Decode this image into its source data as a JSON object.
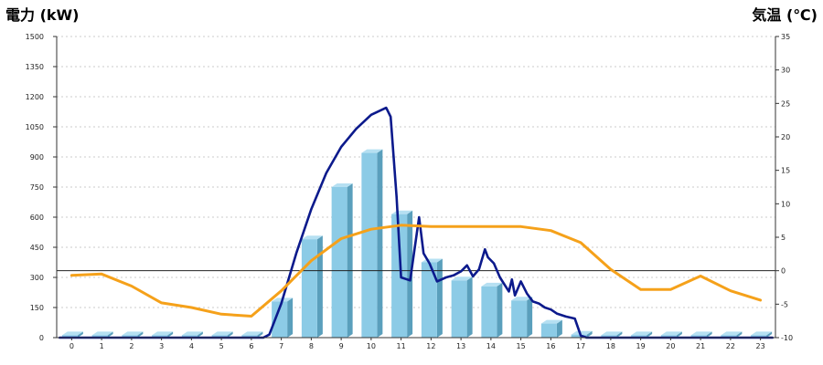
{
  "chart_data": {
    "type": "bar",
    "left_title": "電力 (kW)",
    "right_title": "気温 (℃)",
    "categories": [
      "0",
      "1",
      "2",
      "3",
      "4",
      "5",
      "6",
      "7",
      "8",
      "9",
      "10",
      "11",
      "12",
      "13",
      "14",
      "15",
      "16",
      "17",
      "18",
      "19",
      "20",
      "21",
      "22",
      "23"
    ],
    "y_left": {
      "min": 0,
      "max": 1500,
      "ticks": [
        "0",
        "150",
        "300",
        "450",
        "600",
        "750",
        "900",
        "1050",
        "1200",
        "1350",
        "1500"
      ]
    },
    "y_right": {
      "min": -10,
      "max": 35,
      "ticks": [
        "-10",
        "-5",
        "0",
        "5",
        "10",
        "15",
        "20",
        "25",
        "30",
        "35"
      ]
    },
    "grid": true,
    "reference_line": {
      "axis": "right",
      "value": 0
    },
    "series": [
      {
        "kind": "bar",
        "axis": "left",
        "values": [
          12,
          12,
          12,
          12,
          12,
          12,
          12,
          180,
          490,
          750,
          920,
          615,
          375,
          285,
          255,
          185,
          70,
          15,
          12,
          12,
          12,
          12,
          12,
          12
        ]
      },
      {
        "kind": "line",
        "axis": "left",
        "points": [
          [
            -0.4,
            0
          ],
          [
            6.4,
            0
          ],
          [
            6.6,
            15
          ],
          [
            7,
            170
          ],
          [
            7.5,
            420
          ],
          [
            8,
            640
          ],
          [
            8.5,
            820
          ],
          [
            9,
            950
          ],
          [
            9.5,
            1040
          ],
          [
            10,
            1110
          ],
          [
            10.5,
            1145
          ],
          [
            10.65,
            1100
          ],
          [
            10.85,
            700
          ],
          [
            11,
            300
          ],
          [
            11.3,
            285
          ],
          [
            11.6,
            600
          ],
          [
            11.75,
            420
          ],
          [
            11.95,
            370
          ],
          [
            12.2,
            280
          ],
          [
            12.5,
            300
          ],
          [
            12.75,
            310
          ],
          [
            13,
            330
          ],
          [
            13.2,
            360
          ],
          [
            13.4,
            305
          ],
          [
            13.6,
            340
          ],
          [
            13.8,
            440
          ],
          [
            13.9,
            400
          ],
          [
            14.1,
            370
          ],
          [
            14.3,
            300
          ],
          [
            14.6,
            230
          ],
          [
            14.7,
            290
          ],
          [
            14.8,
            210
          ],
          [
            15,
            280
          ],
          [
            15.2,
            220
          ],
          [
            15.4,
            180
          ],
          [
            15.6,
            170
          ],
          [
            15.8,
            150
          ],
          [
            16,
            140
          ],
          [
            16.2,
            120
          ],
          [
            16.5,
            105
          ],
          [
            16.8,
            95
          ],
          [
            17,
            10
          ],
          [
            17.2,
            0
          ],
          [
            23.4,
            0
          ]
        ]
      },
      {
        "kind": "line",
        "axis": "right",
        "points": [
          [
            0,
            -0.7
          ],
          [
            1,
            -0.5
          ],
          [
            2,
            -2.3
          ],
          [
            3,
            -4.8
          ],
          [
            4,
            -5.5
          ],
          [
            5,
            -6.5
          ],
          [
            6,
            -6.8
          ],
          [
            7,
            -3.0
          ],
          [
            8,
            1.5
          ],
          [
            9,
            4.8
          ],
          [
            10,
            6.2
          ],
          [
            11,
            6.8
          ],
          [
            12,
            6.6
          ],
          [
            13,
            6.6
          ],
          [
            14,
            6.6
          ],
          [
            15,
            6.6
          ],
          [
            16,
            6.0
          ],
          [
            17,
            4.2
          ],
          [
            18,
            0.2
          ],
          [
            19,
            -2.8
          ],
          [
            20,
            -2.8
          ],
          [
            21,
            -0.8
          ],
          [
            22,
            -3.0
          ],
          [
            23,
            -4.4
          ]
        ]
      }
    ],
    "colors": {
      "bar_face": "#8ccbe6",
      "bar_side": "#5a9fbc",
      "bar_top": "#b6e0f2",
      "power_line": "#0c1a8c",
      "temp_line": "#f5a11a",
      "left_title": "#2a62b4",
      "right_title": "#f39a1a",
      "grid": "#bbbbbb"
    }
  }
}
